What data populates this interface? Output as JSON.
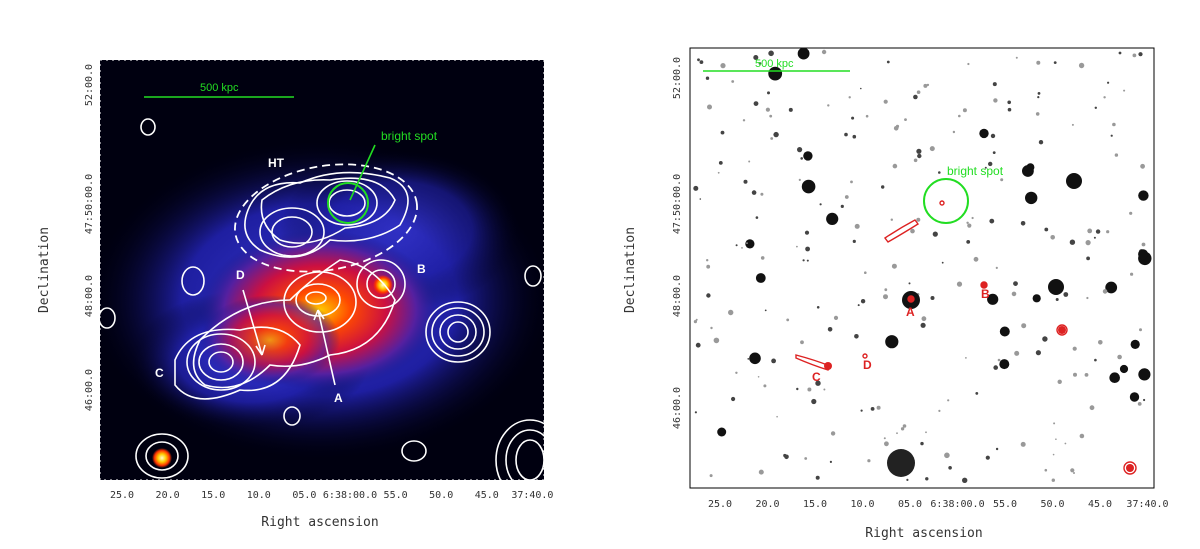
{
  "left_panel": {
    "scale_bar_label": "500 kpc",
    "annotation_bright_spot": "bright spot",
    "label_ht": "HT",
    "label_a": "A",
    "label_b": "B",
    "label_c": "C",
    "label_d": "D",
    "xlabel": "Right ascension",
    "ylabel": "Declination",
    "x_ticks": [
      "25.0",
      "20.0",
      "15.0",
      "10.0",
      "05.0",
      "6:38:00.0",
      "55.0",
      "50.0",
      "45.0",
      "37:40.0"
    ],
    "y_ticks": [
      "52:00.0",
      "47:50:00.0",
      "48:00.0",
      "46:00.0"
    ]
  },
  "right_panel": {
    "scale_bar_label": "500 kpc",
    "annotation_bright_spot": "bright spot",
    "label_a": "A",
    "label_b": "B",
    "label_c": "C",
    "label_d": "D",
    "xlabel": "Right ascension",
    "ylabel": "Declination",
    "x_ticks": [
      "25.0",
      "20.0",
      "15.0",
      "10.0",
      "05.0",
      "6:38:00.0",
      "55.0",
      "50.0",
      "45.0",
      "37:40.0"
    ],
    "y_ticks": [
      "52:00.0",
      "47:50:00.0",
      "48:00.0",
      "46:00.0"
    ]
  },
  "colors": {
    "contour": "#ffffff",
    "annotation": "#22dd22",
    "source_label": "#dd2222",
    "background_blue": "#1a1a6e"
  }
}
